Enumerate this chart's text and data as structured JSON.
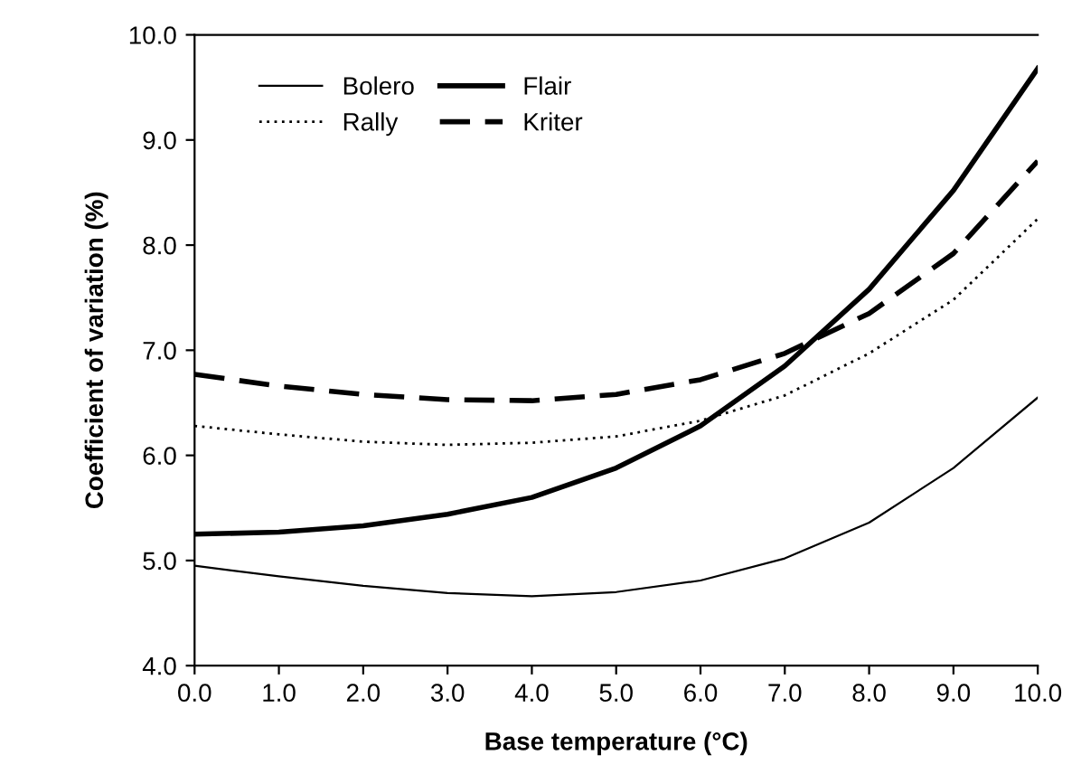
{
  "chart_data": {
    "type": "line",
    "xlabel": "Base temperature (°C)",
    "ylabel": "Coefficient of variation (%)",
    "x": [
      0,
      1,
      2,
      3,
      4,
      5,
      6,
      7,
      8,
      9,
      10
    ],
    "xlim": [
      0,
      10
    ],
    "ylim": [
      4,
      10
    ],
    "xticks": [
      {
        "value": 0,
        "label": "0.0"
      },
      {
        "value": 1,
        "label": "1.0"
      },
      {
        "value": 2,
        "label": "2.0"
      },
      {
        "value": 3,
        "label": "3.0"
      },
      {
        "value": 4,
        "label": "4.0"
      },
      {
        "value": 5,
        "label": "5.0"
      },
      {
        "value": 6,
        "label": "6.0"
      },
      {
        "value": 7,
        "label": "7.0"
      },
      {
        "value": 8,
        "label": "8.0"
      },
      {
        "value": 9,
        "label": "9.0"
      },
      {
        "value": 10,
        "label": "10.0"
      }
    ],
    "yticks": [
      {
        "value": 4,
        "label": "4.0"
      },
      {
        "value": 5,
        "label": "5.0"
      },
      {
        "value": 6,
        "label": "6.0"
      },
      {
        "value": 7,
        "label": "7.0"
      },
      {
        "value": 8,
        "label": "8.0"
      },
      {
        "value": 9,
        "label": "9.0"
      },
      {
        "value": 10,
        "label": "10.0"
      }
    ],
    "grid": false,
    "legend": "top left",
    "marker": "none",
    "series": [
      {
        "name": "Bolero",
        "color": "#000000",
        "line_style": "solid",
        "values": [
          4.95,
          4.85,
          4.76,
          4.69,
          4.66,
          4.7,
          4.81,
          5.02,
          5.36,
          5.88,
          6.55
        ]
      },
      {
        "name": "Rally",
        "color": "#000000",
        "line_style": "dotted",
        "values": [
          6.28,
          6.2,
          6.13,
          6.1,
          6.12,
          6.18,
          6.33,
          6.57,
          6.97,
          7.48,
          8.25
        ]
      },
      {
        "name": "Flair",
        "color": "#000000",
        "line_style": "solid",
        "values": [
          5.25,
          5.27,
          5.33,
          5.44,
          5.6,
          5.88,
          6.28,
          6.85,
          7.58,
          8.52,
          9.68
        ]
      },
      {
        "name": "Kriter",
        "color": "#000000",
        "line_style": "dashed",
        "values": [
          6.77,
          6.66,
          6.58,
          6.53,
          6.52,
          6.58,
          6.72,
          6.97,
          7.35,
          7.92,
          8.8
        ]
      }
    ]
  }
}
